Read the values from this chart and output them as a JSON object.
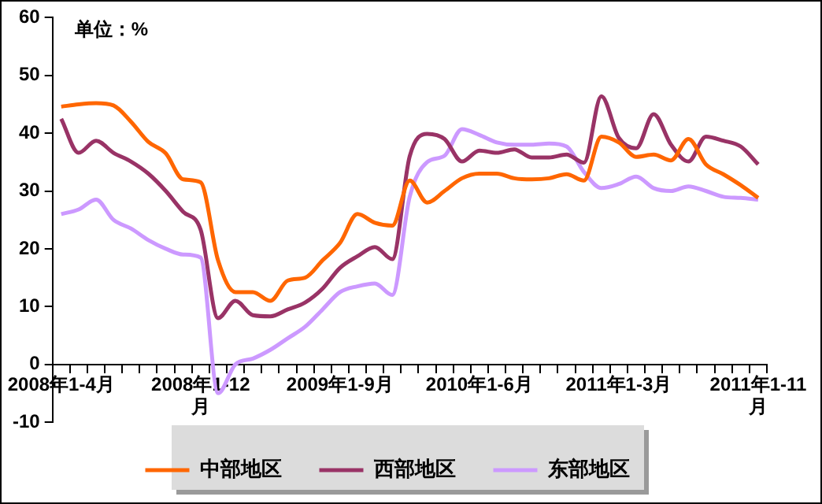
{
  "chart_data": {
    "type": "line",
    "annotations": [
      "单位：%"
    ],
    "categories": [
      "2008年1-4月",
      null,
      null,
      null,
      null,
      null,
      null,
      null,
      "2008年1-12月",
      null,
      null,
      null,
      null,
      null,
      null,
      null,
      "2009年1-9月",
      null,
      null,
      null,
      null,
      null,
      null,
      null,
      "2010年1-6月",
      null,
      null,
      null,
      null,
      null,
      null,
      null,
      "2011年1-3月",
      null,
      null,
      null,
      null,
      null,
      null,
      null,
      "2011年1-11月"
    ],
    "series": [
      {
        "name": "中部地区",
        "color": "#ff6600",
        "values": [
          44.6,
          45,
          45.2,
          44.8,
          42,
          38.5,
          36.5,
          32,
          31.5,
          18,
          12.5,
          12.5,
          11,
          14.5,
          15,
          18,
          21,
          26,
          24.5,
          24,
          31.8,
          28,
          30,
          32.2,
          33,
          33,
          32.2,
          32,
          32.2,
          32.9,
          31.8,
          39.4,
          38.4,
          35.9,
          36.3,
          35.3,
          39,
          34.6,
          32.9,
          31,
          28.8
        ]
      },
      {
        "name": "西部地区",
        "color": "#993366",
        "values": [
          42.5,
          36.6,
          38.7,
          36.6,
          35.1,
          33,
          30,
          26.4,
          23.3,
          8,
          11,
          8.5,
          8.3,
          9.5,
          10.7,
          13.1,
          16.7,
          18.7,
          20.3,
          18.2,
          36,
          39.9,
          39,
          35.1,
          37,
          36.6,
          37.2,
          35.8,
          35.8,
          36.3,
          34.9,
          46.4,
          39.2,
          37.4,
          43.3,
          38,
          35.1,
          39.4,
          38.7,
          37.7,
          34.6
        ]
      },
      {
        "name": "东部地区",
        "color": "#cc99ff",
        "values": [
          26,
          26.8,
          28.5,
          25,
          23.5,
          21.5,
          20,
          19,
          18.5,
          -5,
          0,
          1,
          2.5,
          4.5,
          6.5,
          9.5,
          12.5,
          13.5,
          14,
          12,
          29,
          35,
          36.1,
          40.7,
          39.7,
          38.4,
          38,
          38,
          38.2,
          37.7,
          33.3,
          30.5,
          31.2,
          32.5,
          30.5,
          30,
          30.8,
          30,
          29,
          28.8,
          28.5
        ]
      }
    ],
    "ylim": [
      -10,
      60
    ],
    "yticks": [
      -10,
      0,
      10,
      20,
      30,
      40,
      50,
      60
    ],
    "legend": "bottom",
    "marker": "none"
  }
}
